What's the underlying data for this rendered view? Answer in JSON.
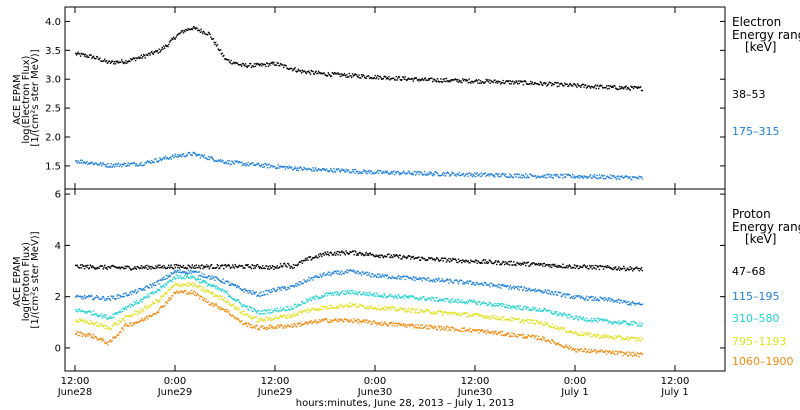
{
  "chart_data": {
    "type": "scatter",
    "xlabel": "hours:minutes, June 28, 2013 – July  1, 2013",
    "x_ticks": [
      {
        "hours": 0,
        "time": "12:00",
        "date": "June28"
      },
      {
        "hours": 12,
        "time": "0:00",
        "date": "June29"
      },
      {
        "hours": 24,
        "time": "12:00",
        "date": "June29"
      },
      {
        "hours": 36,
        "time": "0:00",
        "date": "June30"
      },
      {
        "hours": 48,
        "time": "12:00",
        "date": "June30"
      },
      {
        "hours": 60,
        "time": "0:00",
        "date": "July 1"
      },
      {
        "hours": 72,
        "time": "12:00",
        "date": "July 1"
      }
    ],
    "xlim_hours": [
      -1.2,
      78
    ],
    "panels": [
      {
        "id": "electron",
        "ylabel_lines": [
          "ACE EPAM",
          "log(Electron Flux)",
          "[1/(cm²s ster MeV)]"
        ],
        "ylim": [
          1.1,
          4.25
        ],
        "yticks": [
          "1.5",
          "2.0",
          "2.5",
          "3.0",
          "3.5",
          "4.0"
        ],
        "legend_title": [
          "Electron",
          "Energy ranges",
          "[keV]"
        ],
        "series": [
          {
            "name": "38–53",
            "color": "#000000",
            "x": [
              0,
              2,
              4,
              6,
              8,
              10,
              11,
              12,
              13,
              14,
              15,
              16,
              18,
              20,
              22,
              24,
              27,
              30,
              36,
              42,
              48,
              54,
              60,
              64,
              68
            ],
            "y": [
              3.45,
              3.4,
              3.3,
              3.32,
              3.4,
              3.5,
              3.6,
              3.75,
              3.85,
              3.9,
              3.85,
              3.8,
              3.35,
              3.25,
              3.25,
              3.28,
              3.15,
              3.1,
              3.05,
              3.0,
              2.98,
              2.95,
              2.9,
              2.87,
              2.85
            ]
          },
          {
            "name": "175–315",
            "color": "#1f7fd8",
            "x": [
              0,
              4,
              8,
              10,
              12,
              14,
              16,
              18,
              20,
              24,
              28,
              32,
              36,
              42,
              48,
              54,
              60,
              64,
              68
            ],
            "y": [
              1.6,
              1.52,
              1.55,
              1.62,
              1.68,
              1.72,
              1.65,
              1.58,
              1.55,
              1.5,
              1.45,
              1.43,
              1.4,
              1.38,
              1.36,
              1.34,
              1.33,
              1.32,
              1.3
            ]
          }
        ]
      },
      {
        "id": "proton",
        "ylabel_lines": [
          "ACE EPAM",
          "log(Proton Flux)",
          "[1/(cm²s ster MeV)]"
        ],
        "ylim": [
          -0.9,
          6.2
        ],
        "yticks": [
          "0",
          "2",
          "4",
          "6"
        ],
        "legend_title": [
          "Proton",
          "Energy ranges",
          "[keV]"
        ],
        "series": [
          {
            "name": "47–68",
            "color": "#000000",
            "x": [
              0,
              6,
              12,
              18,
              22,
              24,
              25,
              26,
              28,
              30,
              33,
              36,
              42,
              48,
              54,
              60,
              64,
              68
            ],
            "y": [
              3.2,
              3.15,
              3.2,
              3.2,
              3.2,
              3.15,
              3.3,
              3.2,
              3.5,
              3.7,
              3.75,
              3.65,
              3.5,
              3.4,
              3.3,
              3.2,
              3.15,
              3.1
            ]
          },
          {
            "name": "115–195",
            "color": "#1f7fd8",
            "x": [
              0,
              2,
              4,
              6,
              8,
              10,
              12,
              14,
              16,
              18,
              20,
              22,
              24,
              26,
              28,
              30,
              33,
              36,
              42,
              48,
              52,
              56,
              60,
              64,
              68
            ],
            "y": [
              2.0,
              2.0,
              1.95,
              2.1,
              2.3,
              2.6,
              3.0,
              3.0,
              2.8,
              2.6,
              2.3,
              2.1,
              2.3,
              2.4,
              2.7,
              2.9,
              3.0,
              2.85,
              2.7,
              2.55,
              2.4,
              2.25,
              2.0,
              1.9,
              1.7
            ]
          },
          {
            "name": "310–580",
            "color": "#20d0d0",
            "x": [
              0,
              2,
              4,
              6,
              8,
              10,
              12,
              14,
              16,
              18,
              20,
              22,
              24,
              26,
              28,
              30,
              33,
              36,
              42,
              48,
              52,
              56,
              60,
              64,
              68
            ],
            "y": [
              1.5,
              1.4,
              1.2,
              1.6,
              1.9,
              2.3,
              2.8,
              2.8,
              2.5,
              2.2,
              1.7,
              1.4,
              1.5,
              1.6,
              1.9,
              2.1,
              2.2,
              2.1,
              1.95,
              1.8,
              1.65,
              1.5,
              1.2,
              1.05,
              0.95
            ]
          },
          {
            "name": "795–1193",
            "color": "#e0e020",
            "x": [
              0,
              2,
              4,
              6,
              8,
              10,
              12,
              14,
              16,
              18,
              20,
              22,
              24,
              26,
              28,
              30,
              33,
              36,
              42,
              48,
              52,
              56,
              60,
              64,
              68
            ],
            "y": [
              1.1,
              1.0,
              0.8,
              1.2,
              1.5,
              1.9,
              2.5,
              2.5,
              2.2,
              1.9,
              1.4,
              1.1,
              1.2,
              1.3,
              1.5,
              1.6,
              1.7,
              1.6,
              1.45,
              1.3,
              1.15,
              1.0,
              0.6,
              0.45,
              0.35
            ]
          },
          {
            "name": "1060–1900",
            "color": "#f08a10",
            "x": [
              0,
              2,
              4,
              6,
              8,
              10,
              12,
              14,
              16,
              18,
              20,
              22,
              24,
              26,
              28,
              30,
              33,
              36,
              42,
              48,
              52,
              56,
              60,
              64,
              68
            ],
            "y": [
              0.6,
              0.5,
              0.2,
              0.9,
              1.1,
              1.5,
              2.2,
              2.2,
              1.8,
              1.5,
              1.0,
              0.8,
              0.85,
              0.9,
              1.0,
              1.1,
              1.1,
              1.0,
              0.85,
              0.7,
              0.55,
              0.4,
              -0.05,
              -0.15,
              -0.25
            ]
          }
        ]
      }
    ]
  }
}
